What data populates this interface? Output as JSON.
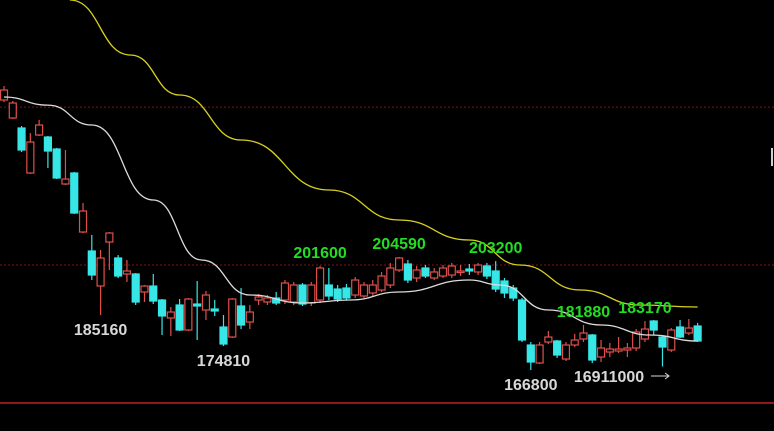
{
  "chart_data": {
    "type": "candlestick",
    "title": "",
    "xlabel": "",
    "ylabel": "",
    "ylim": [
      146450,
      290400
    ],
    "grid": "red dashed horizontal lines",
    "colors": {
      "background": "#000000",
      "up": "#e0504a",
      "down": "#37e6e6",
      "ma_short": "#dcdcdc",
      "ma_long": "#d8d020",
      "grid": "#8a1010",
      "baseline": "#c02020",
      "high_label": "#22dd22",
      "low_label": "#d8d8d8"
    },
    "candles": [
      [
        257000,
        261680,
        256330,
        260340
      ],
      [
        250990,
        256670,
        250650,
        256000
      ],
      [
        247650,
        248320,
        239630,
        240300
      ],
      [
        232620,
        245980,
        232290,
        242970
      ],
      [
        245310,
        250320,
        244980,
        248650
      ],
      [
        244640,
        244980,
        234290,
        239960
      ],
      [
        240630,
        240970,
        230610,
        230950
      ],
      [
        228950,
        240300,
        228610,
        230610
      ],
      [
        232620,
        232960,
        218920,
        219260
      ],
      [
        212910,
        222600,
        212580,
        219930
      ],
      [
        206570,
        211910,
        196880,
        198550
      ],
      [
        194870,
        206900,
        185160,
        204230
      ],
      [
        209570,
        212910,
        200220,
        212580
      ],
      [
        204230,
        205230,
        197550,
        198220
      ],
      [
        198890,
        203560,
        196210,
        199890
      ],
      [
        198890,
        199220,
        188530,
        189530
      ],
      [
        192870,
        195210,
        189530,
        194870
      ],
      [
        194870,
        198890,
        188860,
        189860
      ],
      [
        190200,
        190530,
        178510,
        184860
      ],
      [
        184190,
        187860,
        178180,
        186190
      ],
      [
        188530,
        190530,
        179850,
        180180
      ],
      [
        180180,
        190870,
        179850,
        190530
      ],
      [
        188860,
        196550,
        176840,
        188200
      ],
      [
        186860,
        193210,
        183520,
        191870
      ],
      [
        187190,
        190200,
        184860,
        186530
      ],
      [
        181180,
        185190,
        174810,
        175500
      ],
      [
        177840,
        190870,
        177510,
        190530
      ],
      [
        188200,
        194200,
        180510,
        181850
      ],
      [
        182850,
        188530,
        180510,
        186190
      ],
      [
        190200,
        192200,
        188530,
        191200
      ],
      [
        189530,
        191870,
        188530,
        190870
      ],
      [
        190870,
        192870,
        188530,
        189200
      ],
      [
        190200,
        196880,
        188860,
        195880
      ],
      [
        189530,
        196210,
        188530,
        195210
      ],
      [
        195210,
        195880,
        188200,
        188860
      ],
      [
        189200,
        196210,
        188200,
        195210
      ],
      [
        190200,
        201600,
        189200,
        200890
      ],
      [
        195210,
        200890,
        190200,
        191540
      ],
      [
        193870,
        195210,
        189530,
        190530
      ],
      [
        194200,
        195540,
        190200,
        190870
      ],
      [
        191870,
        197880,
        190870,
        196880
      ],
      [
        191540,
        196210,
        190870,
        195210
      ],
      [
        192540,
        196880,
        191540,
        195210
      ],
      [
        193540,
        199560,
        192870,
        198220
      ],
      [
        195210,
        202560,
        194200,
        200890
      ],
      [
        200220,
        204590,
        199560,
        204230
      ],
      [
        202230,
        203560,
        195880,
        196880
      ],
      [
        197550,
        201560,
        196210,
        200220
      ],
      [
        200890,
        201890,
        197550,
        198220
      ],
      [
        197550,
        200890,
        196880,
        199560
      ],
      [
        198220,
        201890,
        197550,
        200890
      ],
      [
        198550,
        202560,
        197550,
        201560
      ],
      [
        199560,
        201890,
        198220,
        199890
      ],
      [
        200550,
        202230,
        198550,
        199890
      ],
      [
        199560,
        202560,
        198550,
        201890
      ],
      [
        201560,
        202560,
        197210,
        198220
      ],
      [
        199890,
        203200,
        192870,
        193870
      ],
      [
        196550,
        197550,
        190870,
        192540
      ],
      [
        194200,
        195210,
        189860,
        190870
      ],
      [
        190200,
        190870,
        176170,
        176840
      ],
      [
        175170,
        176170,
        166800,
        169490
      ],
      [
        169160,
        176170,
        168820,
        175170
      ],
      [
        176170,
        179850,
        175500,
        177840
      ],
      [
        176510,
        176840,
        170830,
        171830
      ],
      [
        170490,
        176170,
        169830,
        175170
      ],
      [
        175170,
        178840,
        174500,
        176840
      ],
      [
        177170,
        181880,
        176170,
        179180
      ],
      [
        178510,
        178840,
        169160,
        170160
      ],
      [
        171160,
        176840,
        169490,
        174170
      ],
      [
        172830,
        175840,
        171160,
        173840
      ],
      [
        173170,
        177840,
        172500,
        173840
      ],
      [
        173500,
        175840,
        171160,
        174170
      ],
      [
        174170,
        180510,
        173170,
        179510
      ],
      [
        177170,
        183170,
        176170,
        180510
      ],
      [
        183190,
        183520,
        178510,
        180180
      ],
      [
        177840,
        178180,
        168000,
        174500
      ],
      [
        173500,
        180850,
        172830,
        180180
      ],
      [
        181180,
        183520,
        177510,
        177840
      ],
      [
        179180,
        183850,
        178510,
        180850
      ],
      [
        181520,
        182520,
        176170,
        176510
      ]
    ],
    "candle_fields": [
      "open",
      "high",
      "low",
      "close"
    ],
    "series": [
      {
        "points": [
          [
            0,
            258000
          ],
          [
            5,
            255300
          ],
          [
            10,
            248650
          ],
          [
            17,
            223600
          ],
          [
            22.5,
            203560
          ],
          [
            28,
            191870
          ],
          [
            34,
            189200
          ],
          [
            39.4,
            190200
          ],
          [
            45,
            192870
          ],
          [
            53,
            196880
          ],
          [
            56.5,
            195210
          ],
          [
            62,
            186860
          ],
          [
            68,
            181850
          ],
          [
            73.6,
            178510
          ],
          [
            79,
            176510
          ]
        ]
      },
      {
        "points": [
          [
            7.5,
            290400
          ],
          [
            14.4,
            272030
          ],
          [
            20,
            258670
          ],
          [
            27,
            243640
          ],
          [
            37,
            226940
          ],
          [
            45,
            216920
          ],
          [
            53,
            210240
          ],
          [
            58.8,
            201890
          ],
          [
            65.6,
            193540
          ],
          [
            72.4,
            188530
          ],
          [
            79,
            187860
          ]
        ]
      }
    ],
    "reference_lines": [
      254640,
      201890,
      155800
    ],
    "annotations": [
      {
        "text": "185160",
        "index": 11,
        "kind": "low"
      },
      {
        "text": "174810",
        "index": 25,
        "kind": "low"
      },
      {
        "text": "201600",
        "index": 36,
        "kind": "high"
      },
      {
        "text": "204590",
        "index": 45,
        "kind": "high"
      },
      {
        "text": "203200",
        "index": 56,
        "kind": "high"
      },
      {
        "text": "166800",
        "index": 60,
        "kind": "low"
      },
      {
        "text": "181880",
        "index": 66,
        "kind": "high"
      },
      {
        "text": "183170",
        "index": 73,
        "kind": "high"
      },
      {
        "text": "16911000",
        "index": 68,
        "kind": "low-arrow"
      }
    ]
  }
}
